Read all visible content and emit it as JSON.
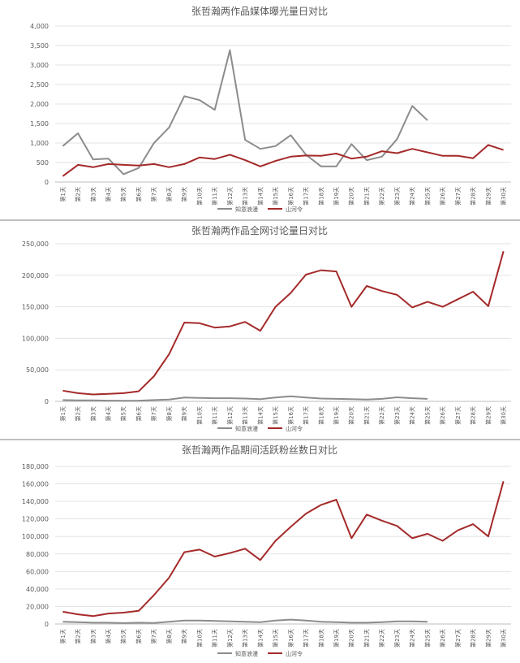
{
  "chart_data": [
    {
      "type": "line",
      "title": "张哲瀚两作品媒体曝光量日对比",
      "ylim": [
        0,
        4000
      ],
      "yticks": [
        0,
        500,
        1000,
        1500,
        2000,
        2500,
        3000,
        3500,
        4000
      ],
      "ytick_labels": [
        "0",
        "500",
        "1,000",
        "1,500",
        "2,000",
        "2,500",
        "3,000",
        "3,500",
        "4,000"
      ],
      "categories": [
        "第1天",
        "第2天",
        "第3天",
        "第4天",
        "第5天",
        "第6天",
        "第7天",
        "第8天",
        "第9天",
        "第10天",
        "第11天",
        "第12天",
        "第13天",
        "第14天",
        "第15天",
        "第16天",
        "第17天",
        "第18天",
        "第19天",
        "第20天",
        "第21天",
        "第22天",
        "第23天",
        "第24天",
        "第25天",
        "第26天",
        "第27天",
        "第28天",
        "第29天",
        "第30天"
      ],
      "legend_position": "bottom",
      "grid": true,
      "series": [
        {
          "name": "知意浪漫",
          "color": "#8c8c8c",
          "values": [
            920,
            1250,
            580,
            600,
            200,
            360,
            1000,
            1400,
            2200,
            2100,
            1850,
            3380,
            1080,
            850,
            920,
            1200,
            700,
            400,
            400,
            970,
            560,
            650,
            1100,
            1950,
            1580,
            null,
            null,
            null,
            null,
            null
          ]
        },
        {
          "name": "山河令",
          "color": "#a52a2a",
          "values": [
            150,
            440,
            380,
            460,
            440,
            420,
            460,
            380,
            460,
            630,
            590,
            700,
            560,
            400,
            540,
            650,
            680,
            670,
            730,
            600,
            650,
            790,
            740,
            850,
            760,
            670,
            670,
            610,
            950,
            820
          ]
        }
      ]
    },
    {
      "type": "line",
      "title": "张哲瀚两作品全网讨论量日对比",
      "ylim": [
        0,
        250000
      ],
      "yticks": [
        0,
        50000,
        100000,
        150000,
        200000,
        250000
      ],
      "ytick_labels": [
        "0",
        "50,000",
        "100,000",
        "150,000",
        "200,000",
        "250,000"
      ],
      "categories": [
        "第1天",
        "第2天",
        "第3天",
        "第4天",
        "第5天",
        "第6天",
        "第7天",
        "第8天",
        "第9天",
        "第10天",
        "第11天",
        "第12天",
        "第13天",
        "第14天",
        "第15天",
        "第16天",
        "第17天",
        "第18天",
        "第19天",
        "第20天",
        "第21天",
        "第22天",
        "第23天",
        "第24天",
        "第25天",
        "第26天",
        "第27天",
        "第28天",
        "第29天",
        "第30天"
      ],
      "legend_position": "bottom",
      "grid": true,
      "series": [
        {
          "name": "知意浪漫",
          "color": "#8c8c8c",
          "values": [
            2000,
            1500,
            1500,
            1200,
            1000,
            1200,
            2000,
            3000,
            6000,
            5500,
            5000,
            5000,
            4500,
            3500,
            6000,
            8000,
            6000,
            4500,
            4000,
            3500,
            3000,
            4000,
            6500,
            5000,
            4000,
            null,
            null,
            null,
            null,
            null
          ]
        },
        {
          "name": "山河令",
          "color": "#a52a2a",
          "values": [
            17000,
            13000,
            11000,
            12000,
            13000,
            16000,
            40000,
            75000,
            125000,
            124000,
            117000,
            119000,
            126000,
            112000,
            150000,
            172000,
            201000,
            208000,
            206000,
            150000,
            183000,
            175000,
            169000,
            149000,
            158000,
            150000,
            162000,
            174000,
            151000,
            238000
          ]
        }
      ]
    },
    {
      "type": "line",
      "title": "张哲瀚两作品期间活跃粉丝数日对比",
      "ylim": [
        0,
        180000
      ],
      "yticks": [
        0,
        20000,
        40000,
        60000,
        80000,
        100000,
        120000,
        140000,
        160000,
        180000
      ],
      "ytick_labels": [
        "0",
        "20,000",
        "40,000",
        "60,000",
        "80,000",
        "100,000",
        "120,000",
        "140,000",
        "160,000",
        "180,000"
      ],
      "categories": [
        "第1天",
        "第2天",
        "第3天",
        "第4天",
        "第5天",
        "第6天",
        "第7天",
        "第8天",
        "第9天",
        "第10天",
        "第11天",
        "第12天",
        "第13天",
        "第14天",
        "第15天",
        "第16天",
        "第17天",
        "第18天",
        "第19天",
        "第20天",
        "第21天",
        "第22天",
        "第23天",
        "第24天",
        "第25天",
        "第26天",
        "第27天",
        "第28天",
        "第29天",
        "第30天"
      ],
      "legend_position": "bottom",
      "grid": true,
      "series": [
        {
          "name": "知意浪漫",
          "color": "#8c8c8c",
          "values": [
            2500,
            2000,
            1500,
            1500,
            1000,
            1500,
            1200,
            2500,
            4000,
            4000,
            3500,
            3000,
            2500,
            2000,
            4000,
            5000,
            4000,
            2500,
            2000,
            1500,
            1500,
            2000,
            3000,
            3000,
            2500,
            null,
            null,
            null,
            null,
            null
          ]
        },
        {
          "name": "山河令",
          "color": "#a52a2a",
          "values": [
            14000,
            11000,
            9000,
            12000,
            13000,
            15000,
            33000,
            53000,
            82000,
            85000,
            77000,
            81000,
            86000,
            73000,
            95000,
            111000,
            126000,
            136000,
            142000,
            98000,
            125000,
            118000,
            112000,
            98000,
            103000,
            95000,
            107000,
            114000,
            100000,
            163000
          ]
        }
      ]
    }
  ]
}
